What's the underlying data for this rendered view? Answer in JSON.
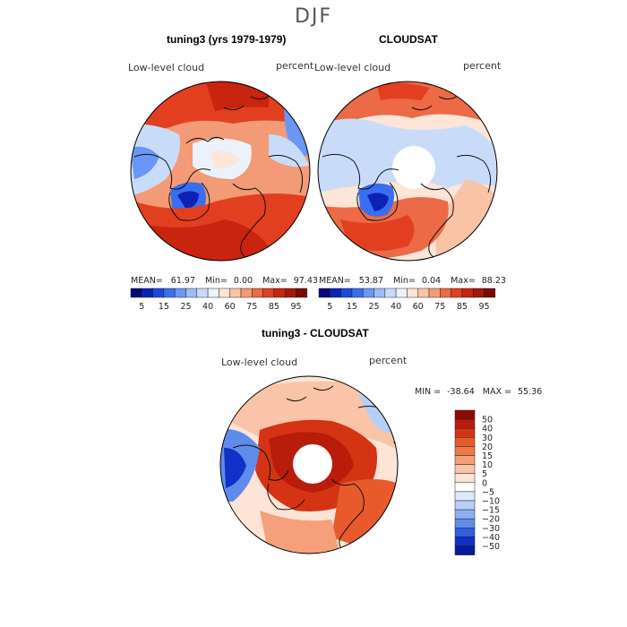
{
  "season": "DJF",
  "panels": [
    {
      "title": "tuning3 (yrs 1979-1979)",
      "variable": "Low-level cloud",
      "units": "percent",
      "stats": {
        "mean_label": "MEAN=",
        "mean": "61.97",
        "min_label": "Min=",
        "min": "0.00",
        "max_label": "Max=",
        "max": "97.43"
      },
      "chart_data": {
        "type": "heatmap",
        "projection": "north-polar-stereographic",
        "title": "tuning3 (yrs 1979-1979)",
        "variable": "Low-level cloud",
        "units": "percent",
        "mean": 61.97,
        "min": 0.0,
        "max": 97.43
      }
    },
    {
      "title": "CLOUDSAT",
      "variable": "Low-level cloud",
      "units": "percent",
      "stats": {
        "mean_label": "MEAN=",
        "mean": "53.87",
        "min_label": "Min=",
        "min": "0.04",
        "max_label": "Max=",
        "max": "88.23"
      },
      "chart_data": {
        "type": "heatmap",
        "projection": "north-polar-stereographic",
        "title": "CLOUDSAT",
        "variable": "Low-level cloud",
        "units": "percent",
        "mean": 53.87,
        "min": 0.04,
        "max": 88.23,
        "missing_pole": true
      }
    }
  ],
  "colorbar_top": {
    "tick_labels": [
      "5",
      "15",
      "25",
      "40",
      "60",
      "75",
      "85",
      "95"
    ],
    "colors": [
      "#08087a",
      "#0c22b6",
      "#1a48e0",
      "#3a6ef0",
      "#6a96f6",
      "#9cbcf8",
      "#c8dcfa",
      "#ecf2fc",
      "#fde5d8",
      "#f9c3a6",
      "#f39a76",
      "#ec6a45",
      "#e23f20",
      "#c82410",
      "#a51708",
      "#7a0b04"
    ]
  },
  "diff_panel": {
    "title": "tuning3 - CLOUDSAT",
    "variable": "Low-level cloud",
    "units": "percent",
    "stats": {
      "min_label": "MIN =",
      "min": "-38.64",
      "max_label": "MAX =",
      "max": "55.36"
    },
    "chart_data": {
      "type": "heatmap",
      "projection": "north-polar-stereographic",
      "title": "tuning3 - CLOUDSAT",
      "variable": "Low-level cloud",
      "units": "percent",
      "min": -38.64,
      "max": 55.36,
      "missing_pole": true
    }
  },
  "colorbar_diff": {
    "tick_labels": [
      "50",
      "40",
      "30",
      "20",
      "15",
      "10",
      "5",
      "0",
      "−5",
      "−10",
      "−15",
      "−20",
      "−30",
      "−40",
      "−50"
    ],
    "colors": [
      "#8e0b04",
      "#b81c0a",
      "#d43414",
      "#e85a2c",
      "#f07848",
      "#f5a07a",
      "#f9c4a8",
      "#fde4d6",
      "#ffffff",
      "#dde9fb",
      "#b6cff7",
      "#8cb0f2",
      "#5f8ceb",
      "#2f5ee0",
      "#1030c8",
      "#071a9c"
    ]
  },
  "colors": {
    "warm_strong": "#cc2a12",
    "warm_mid": "#ec6a45",
    "warm_light": "#f9c3a6",
    "cool_light": "#c8dcfa",
    "cool_mid": "#6a96f6",
    "cool_strong": "#0c22b6",
    "coast": "#111111"
  }
}
